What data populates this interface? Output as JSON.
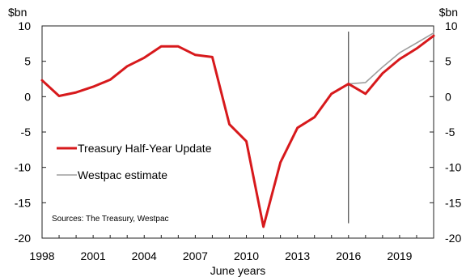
{
  "chart_data": {
    "type": "line",
    "xlabel": "June years",
    "y_unit_left": "$bn",
    "y_unit_right": "$bn",
    "ylim": [
      -20,
      10
    ],
    "xlim": [
      1998,
      2021
    ],
    "y_ticks": [
      "10",
      "5",
      "0",
      "-5",
      "-10",
      "-15",
      "-20"
    ],
    "x_ticks": [
      "1998",
      "2001",
      "2004",
      "2007",
      "2010",
      "2013",
      "2016",
      "2019"
    ],
    "vline_x": 2016,
    "source": "Sources: The Treasury, Westpac",
    "colors": {
      "treasury": "#d7191c",
      "westpac": "#9e9e9e",
      "axis": "#222222"
    },
    "series": [
      {
        "name": "Treasury Half-Year Update",
        "x": [
          1998,
          1999,
          2000,
          2001,
          2002,
          2003,
          2004,
          2005,
          2006,
          2007,
          2008,
          2009,
          2010,
          2011,
          2012,
          2013,
          2014,
          2015,
          2016,
          2017,
          2018,
          2019,
          2020,
          2021
        ],
        "values": [
          2.3,
          0.1,
          0.6,
          1.4,
          2.4,
          4.3,
          5.5,
          7.1,
          7.1,
          5.9,
          5.6,
          -3.9,
          -6.3,
          -18.4,
          -9.3,
          -4.4,
          -2.9,
          0.4,
          1.8,
          0.4,
          3.3,
          5.3,
          6.8,
          8.6
        ]
      },
      {
        "name": "Westpac estimate",
        "x": [
          2016,
          2017,
          2018,
          2019,
          2020,
          2021
        ],
        "values": [
          1.8,
          2.0,
          4.2,
          6.2,
          7.6,
          9.0
        ]
      }
    ]
  }
}
